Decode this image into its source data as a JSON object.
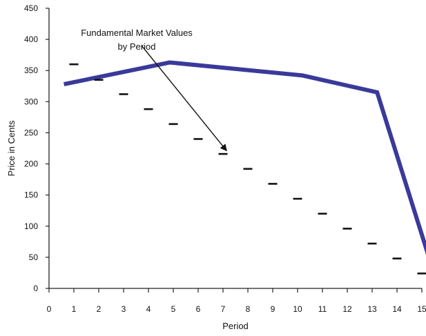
{
  "chart_data": {
    "type": "line",
    "title": "",
    "xlabel": "Period",
    "ylabel": "Price in Cents",
    "xlim": [
      0,
      15
    ],
    "ylim": [
      0,
      450
    ],
    "x_ticks": [
      "0",
      "1",
      "2",
      "3",
      "4",
      "5",
      "6",
      "7",
      "8",
      "9",
      "10",
      "11",
      "12",
      "13",
      "14",
      "15"
    ],
    "y_ticks": [
      "0",
      "50",
      "100",
      "150",
      "200",
      "250",
      "300",
      "350",
      "400",
      "450"
    ],
    "grid": false,
    "series": [
      {
        "style": "line",
        "color": "#3a3a9a",
        "x": [
          0.6,
          4.85,
          10.2,
          13.2,
          15.3
        ],
        "y": [
          328,
          363,
          342,
          315,
          48
        ]
      },
      {
        "name": "Fundamental Market Values by Period",
        "style": "dash-markers",
        "color": "#111111",
        "x": [
          1,
          2,
          3,
          4,
          5,
          6,
          7,
          8,
          9,
          10,
          11,
          12,
          13,
          14,
          15
        ],
        "y": [
          360,
          335,
          312,
          288,
          264,
          240,
          216,
          192,
          168,
          144,
          120,
          96,
          72,
          48,
          24
        ]
      }
    ],
    "annotations": [
      {
        "lines": [
          "Fundamental Market Values",
          "by Period"
        ],
        "arrow_to": {
          "x": 7.2,
          "y": 219
        }
      }
    ]
  }
}
